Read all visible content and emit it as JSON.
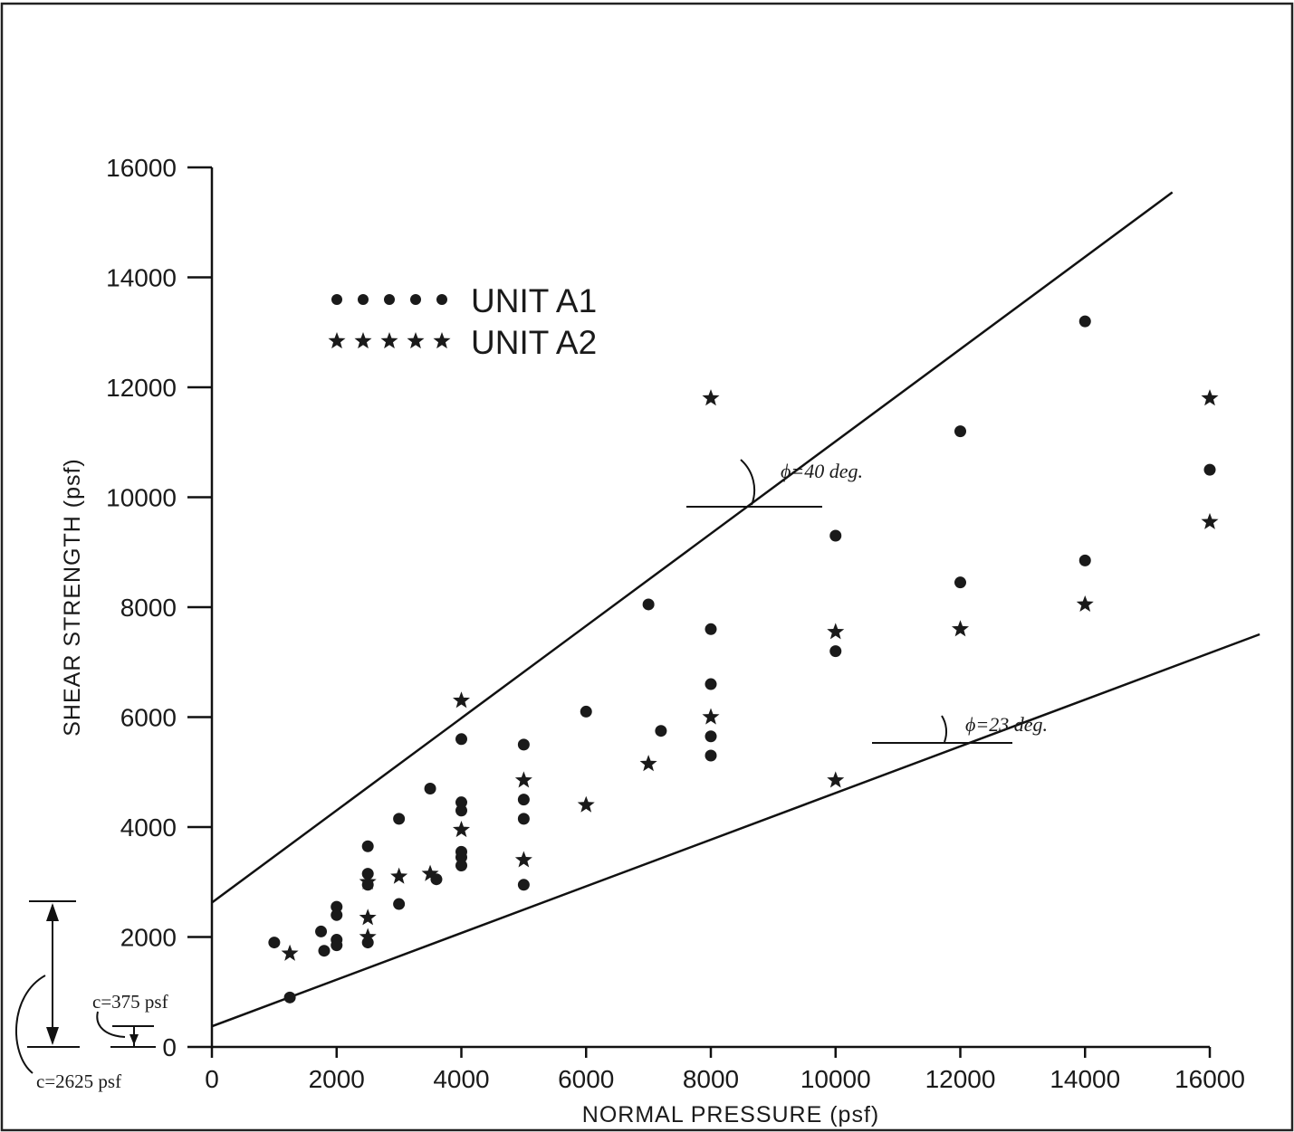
{
  "chart_data": {
    "type": "scatter",
    "xlabel": "NORMAL PRESSURE (psf)",
    "ylabel": "SHEAR STRENGTH (psf)",
    "xlim": [
      0,
      16000
    ],
    "ylim": [
      0,
      16000
    ],
    "x_ticks": [
      0,
      2000,
      4000,
      6000,
      8000,
      10000,
      12000,
      14000,
      16000
    ],
    "y_ticks": [
      0,
      2000,
      4000,
      6000,
      8000,
      10000,
      12000,
      14000,
      16000
    ],
    "grid": false,
    "legend_position": "upper-left",
    "series": [
      {
        "name": "UNIT A1",
        "marker": "circle",
        "points": [
          [
            1000,
            1900
          ],
          [
            1250,
            900
          ],
          [
            1750,
            2100
          ],
          [
            1800,
            1750
          ],
          [
            2000,
            2550
          ],
          [
            2000,
            2400
          ],
          [
            2000,
            1950
          ],
          [
            2000,
            1850
          ],
          [
            2500,
            3650
          ],
          [
            2500,
            3150
          ],
          [
            2500,
            2950
          ],
          [
            2500,
            1900
          ],
          [
            3000,
            4150
          ],
          [
            3000,
            2600
          ],
          [
            3500,
            4700
          ],
          [
            3600,
            3050
          ],
          [
            4000,
            5600
          ],
          [
            4000,
            4450
          ],
          [
            4000,
            4300
          ],
          [
            4000,
            3550
          ],
          [
            4000,
            3450
          ],
          [
            4000,
            3300
          ],
          [
            5000,
            5500
          ],
          [
            5000,
            4500
          ],
          [
            5000,
            4150
          ],
          [
            5000,
            2950
          ],
          [
            6000,
            6100
          ],
          [
            7000,
            8050
          ],
          [
            7200,
            5750
          ],
          [
            8000,
            7600
          ],
          [
            8000,
            6600
          ],
          [
            8000,
            5650
          ],
          [
            8000,
            5300
          ],
          [
            10000,
            9300
          ],
          [
            10000,
            7200
          ],
          [
            12000,
            11200
          ],
          [
            12000,
            8450
          ],
          [
            14000,
            13200
          ],
          [
            14000,
            8850
          ],
          [
            16000,
            10500
          ]
        ]
      },
      {
        "name": "UNIT A2",
        "marker": "star",
        "points": [
          [
            1250,
            1700
          ],
          [
            2500,
            3000
          ],
          [
            2500,
            2350
          ],
          [
            2500,
            2000
          ],
          [
            3000,
            3100
          ],
          [
            3500,
            3150
          ],
          [
            4000,
            6300
          ],
          [
            4000,
            3950
          ],
          [
            5000,
            4850
          ],
          [
            5000,
            3400
          ],
          [
            6000,
            4400
          ],
          [
            7000,
            5150
          ],
          [
            8000,
            11800
          ],
          [
            8000,
            6000
          ],
          [
            10000,
            7550
          ],
          [
            10000,
            4850
          ],
          [
            12000,
            7600
          ],
          [
            14000,
            8050
          ],
          [
            16000,
            11800
          ],
          [
            16000,
            9550
          ]
        ]
      }
    ],
    "envelopes": [
      {
        "c": 2625,
        "phi_deg": 40,
        "x_range": [
          0,
          15400
        ],
        "label": "ϕ=40 deg."
      },
      {
        "c": 375,
        "phi_deg": 23,
        "x_range": [
          0,
          16800
        ],
        "label": "ϕ=23 deg."
      }
    ],
    "annotations": {
      "c_upper": "c=2625 psf",
      "c_lower": "c=375 psf"
    }
  }
}
